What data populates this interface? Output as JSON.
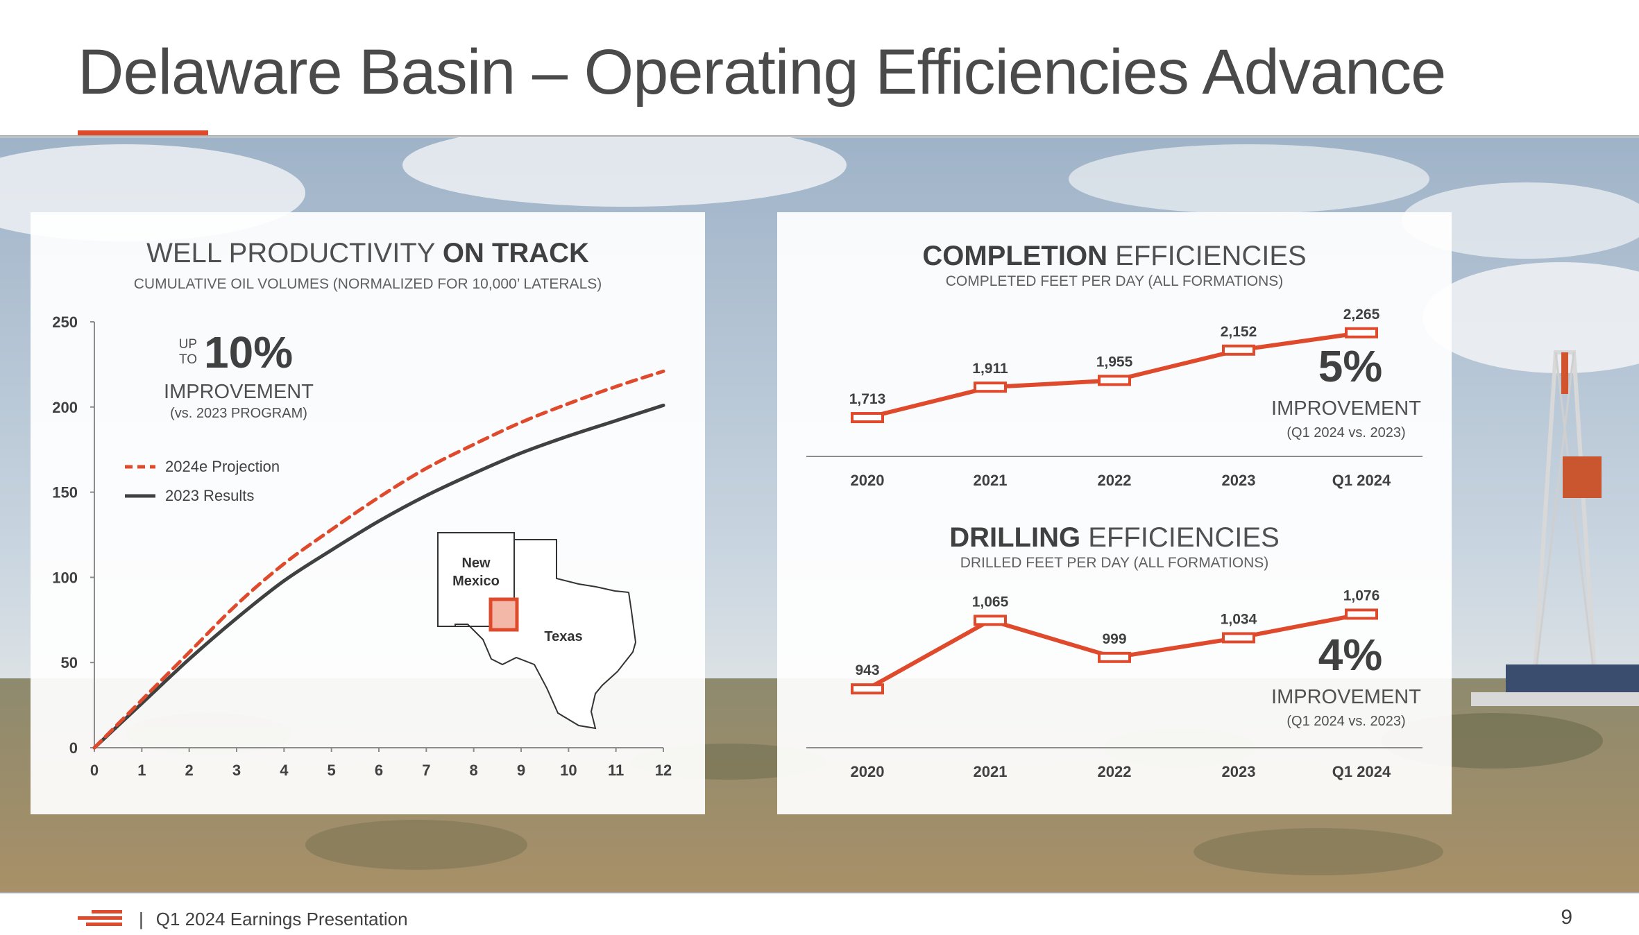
{
  "header": {
    "title": "Delaware Basin – Operating Efficiencies Advance"
  },
  "colors": {
    "accent": "#e04a2c",
    "dark_line": "#404040",
    "text": "#404040"
  },
  "chart_data": [
    {
      "type": "line",
      "title_light": "WELL PRODUCTIVITY ",
      "title_bold": "ON TRACK",
      "subtitle": "CUMULATIVE OIL VOLUMES (NORMALIZED FOR 10,000’ LATERALS)",
      "xlabel": "",
      "ylabel": "",
      "xlim": [
        0,
        12
      ],
      "ylim": [
        0,
        250
      ],
      "x_ticks": [
        "0",
        "1",
        "2",
        "3",
        "4",
        "5",
        "6",
        "7",
        "8",
        "9",
        "10",
        "11",
        "12"
      ],
      "y_ticks": [
        "0",
        "50",
        "100",
        "150",
        "200",
        "250"
      ],
      "legend_position": "left",
      "series": [
        {
          "name": "2024e Projection",
          "style": "dashed",
          "color": "#e04a2c",
          "x": [
            0,
            1,
            2,
            3,
            4,
            5,
            6,
            7,
            8,
            9,
            10,
            11,
            12
          ],
          "y": [
            0,
            28,
            56,
            84,
            108,
            128,
            147,
            164,
            178,
            191,
            202,
            212,
            221
          ]
        },
        {
          "name": "2023 Results",
          "style": "solid",
          "color": "#404040",
          "x": [
            0,
            1,
            2,
            3,
            4,
            5,
            6,
            7,
            8,
            9,
            10,
            11,
            12
          ],
          "y": [
            0,
            26,
            52,
            76,
            98,
            116,
            133,
            148,
            161,
            173,
            183,
            192,
            201
          ]
        }
      ],
      "annotation": {
        "up": "UP",
        "to": "TO",
        "value": "10%",
        "label": "IMPROVEMENT",
        "sub": "(vs. 2023 PROGRAM)"
      },
      "map": {
        "label_nm_1": "New",
        "label_nm_2": "Mexico",
        "label_tx": "Texas"
      }
    },
    {
      "type": "line",
      "title_bold": "COMPLETION",
      "title_light": " EFFICIENCIES",
      "subtitle": "COMPLETED FEET PER DAY (ALL FORMATIONS)",
      "categories": [
        "2020",
        "2021",
        "2022",
        "2023",
        "Q1 2024"
      ],
      "values": [
        1713,
        1911,
        1955,
        2152,
        2265
      ],
      "data_labels": [
        "1,713",
        "1,911",
        "1,955",
        "2,152",
        "2,265"
      ],
      "annotation": {
        "value": "5%",
        "label": "IMPROVEMENT",
        "sub": "(Q1 2024 vs. 2023)"
      }
    },
    {
      "type": "line",
      "title_bold": "DRILLING",
      "title_light": " EFFICIENCIES",
      "subtitle": "DRILLED FEET PER DAY (ALL FORMATIONS)",
      "categories": [
        "2020",
        "2021",
        "2022",
        "2023",
        "Q1 2024"
      ],
      "values": [
        943,
        1065,
        999,
        1034,
        1076
      ],
      "data_labels": [
        "943",
        "1,065",
        "999",
        "1,034",
        "1,076"
      ],
      "annotation": {
        "value": "4%",
        "label": "IMPROVEMENT",
        "sub": "(Q1 2024 vs. 2023)"
      }
    }
  ],
  "footer": {
    "separator": "|",
    "text": "Q1 2024 Earnings Presentation",
    "page": "9"
  }
}
